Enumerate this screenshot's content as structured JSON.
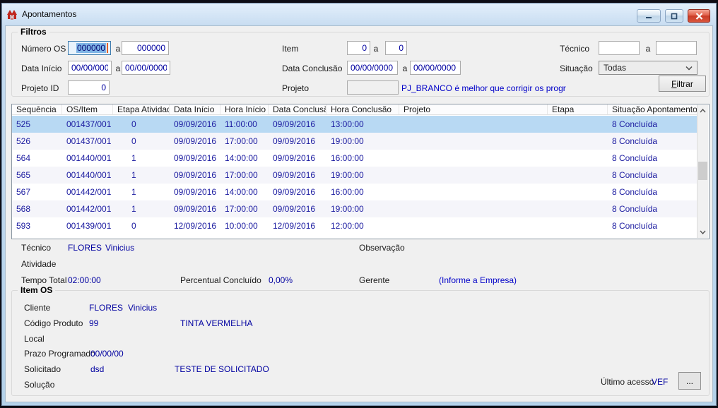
{
  "window": {
    "title": "Apontamentos"
  },
  "filters": {
    "group_title": "Filtros",
    "a_separator": "a",
    "numero_os": {
      "label": "Número OS",
      "from": "000000",
      "to": "000000"
    },
    "data_inicio": {
      "label": "Data Início",
      "from": "00/00/0000",
      "to": "00/00/0000"
    },
    "projeto_id": {
      "label": "Projeto ID",
      "value": "0"
    },
    "item": {
      "label": "Item",
      "from": "0",
      "to": "0"
    },
    "data_conclusao": {
      "label": "Data Conclusão",
      "from": "00/00/0000",
      "to": "00/00/0000"
    },
    "projeto": {
      "label": "Projeto",
      "value": "",
      "note": "PJ_BRANCO é melhor que corrigir os progr"
    },
    "tecnico": {
      "label": "Técnico",
      "from": "",
      "to": ""
    },
    "situacao": {
      "label": "Situação",
      "value": "Todas"
    },
    "filtrar": {
      "mnemonic": "F",
      "rest": "iltrar"
    }
  },
  "grid": {
    "columns": [
      "Sequência",
      "OS/Item",
      "Etapa Atividade",
      "Data Início",
      "Hora Início",
      "Data Conclusão",
      "Hora Conclusão",
      "Projeto",
      "Etapa",
      "Situação Apontamento"
    ],
    "rows": [
      [
        "525",
        "001437/001",
        "0",
        "09/09/2016",
        "11:00:00",
        "09/09/2016",
        "13:00:00",
        "",
        "",
        "8 Concluída"
      ],
      [
        "526",
        "001437/001",
        "0",
        "09/09/2016",
        "17:00:00",
        "09/09/2016",
        "19:00:00",
        "",
        "",
        "8 Concluída"
      ],
      [
        "564",
        "001440/001",
        "1",
        "09/09/2016",
        "14:00:00",
        "09/09/2016",
        "16:00:00",
        "",
        "",
        "8 Concluída"
      ],
      [
        "565",
        "001440/001",
        "1",
        "09/09/2016",
        "17:00:00",
        "09/09/2016",
        "19:00:00",
        "",
        "",
        "8 Concluída"
      ],
      [
        "567",
        "001442/001",
        "1",
        "09/09/2016",
        "14:00:00",
        "09/09/2016",
        "16:00:00",
        "",
        "",
        "8 Concluída"
      ],
      [
        "568",
        "001442/001",
        "1",
        "09/09/2016",
        "17:00:00",
        "09/09/2016",
        "19:00:00",
        "",
        "",
        "8 Concluída"
      ],
      [
        "593",
        "001439/001",
        "0",
        "12/09/2016",
        "10:00:00",
        "12/09/2016",
        "12:00:00",
        "",
        "",
        "8 Concluída"
      ]
    ],
    "selected_row_index": 0
  },
  "details": {
    "tecnico_label": "Técnico",
    "tecnico_code": "FLORES",
    "tecnico_name": "Vinicius",
    "observacao_label": "Observação",
    "atividade_label": "Atividade",
    "tempo_total_label": "Tempo Total",
    "tempo_total": "02:00:00",
    "percentual_label": "Percentual Concluído",
    "percentual": "0,00%",
    "gerente_label": "Gerente",
    "gerente_value": "(Informe a Empresa)"
  },
  "item_os": {
    "group_title": "Item OS",
    "cliente_label": "Cliente",
    "cliente_code": "FLORES",
    "cliente_name": "Vinicius",
    "codigo_produto_label": "Código Produto",
    "codigo_produto": "99",
    "produto_desc": "TINTA VERMELHA",
    "local_label": "Local",
    "prazo_label": "Prazo Programado",
    "prazo": "00/00/00",
    "solicitado_label": "Solicitado",
    "solicitado_code": "dsd",
    "solicitado_desc": "TESTE DE SOLICITADO",
    "solucao_label": "Solução",
    "ultimo_acesso_label": "Último acesso",
    "ultimo_acesso_user": "VEF",
    "browse_label": "..."
  },
  "colors": {
    "value_navy": "#0000a0",
    "note_blue": "#0000c8",
    "selection_blue": "#b8d9f3",
    "close_red": "#c93b27",
    "icon_red": "#c0271e"
  }
}
